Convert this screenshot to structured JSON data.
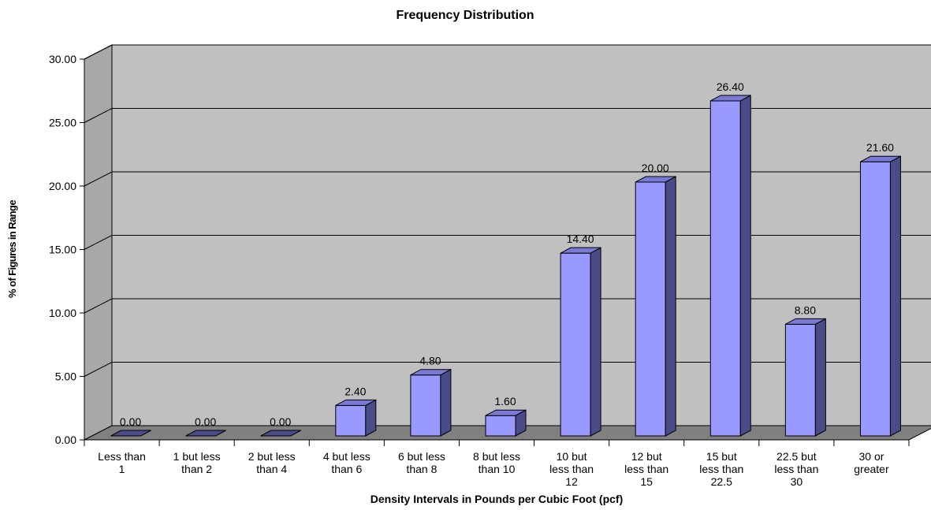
{
  "chart_data": {
    "type": "bar",
    "title": "Frequency Distribution",
    "xlabel": "Density Intervals in Pounds per Cubic Foot (pcf)",
    "ylabel": "% of Figures in Range",
    "ylim": [
      0,
      30
    ],
    "yticks": [
      "0.00",
      "5.00",
      "10.00",
      "15.00",
      "20.00",
      "25.00",
      "30.00"
    ],
    "categories": [
      [
        "Less than",
        "1"
      ],
      [
        "1 but less",
        "than 2"
      ],
      [
        "2 but less",
        "than 4"
      ],
      [
        "4 but less",
        "than 6"
      ],
      [
        "6 but less",
        "than 8"
      ],
      [
        "8 but less",
        "than 10"
      ],
      [
        "10 but",
        "less than",
        "12"
      ],
      [
        "12 but",
        "less than",
        "15"
      ],
      [
        "15 but",
        "less than",
        "22.5"
      ],
      [
        "22.5 but",
        "less than",
        "30"
      ],
      [
        "30 or",
        "greater"
      ]
    ],
    "values": [
      0.0,
      0.0,
      0.0,
      2.4,
      4.8,
      1.6,
      14.4,
      20.0,
      26.4,
      8.8,
      21.6
    ],
    "data_labels": [
      "0.00",
      "0.00",
      "0.00",
      "2.40",
      "4.80",
      "1.60",
      "14.40",
      "20.00",
      "26.40",
      "8.80",
      "21.60"
    ],
    "grid": true,
    "legend": "none",
    "colors": {
      "bar_front": "#9999ff",
      "bar_side": "#4b4b87",
      "bar_top": "#7a7ad6",
      "plot_wall": "#c0c0c0",
      "side_wall": "#a8a8a8",
      "floor": "#808080"
    }
  }
}
